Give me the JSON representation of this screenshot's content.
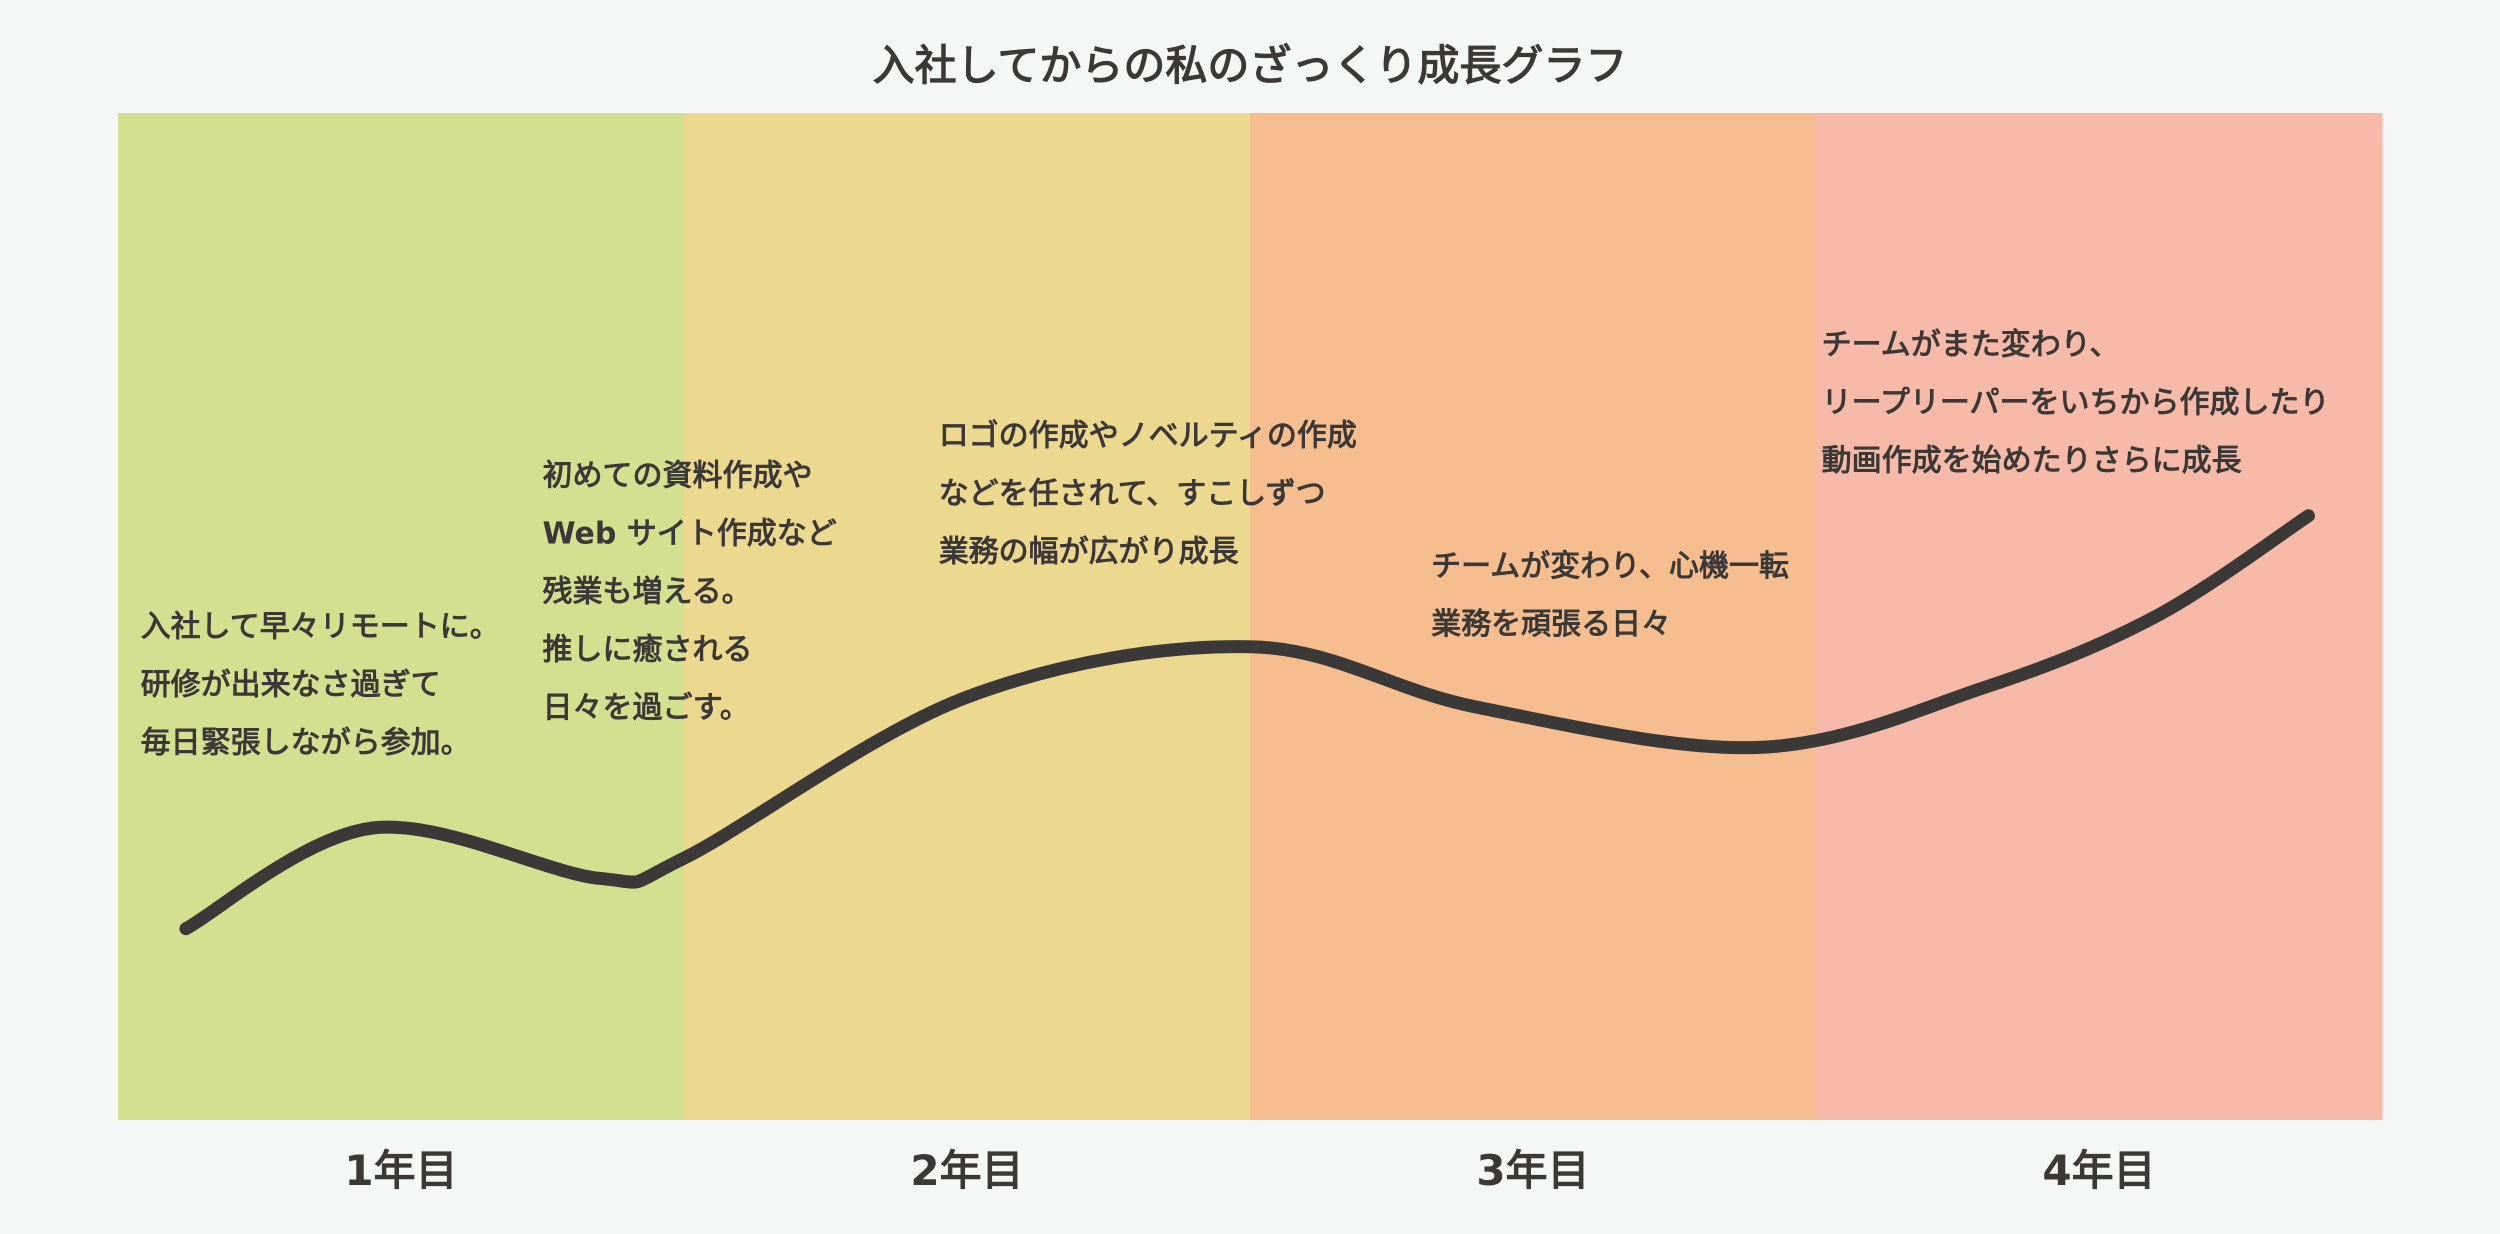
{
  "chart_data": {
    "type": "line",
    "title": "入社してからの私のざっくり成長グラフ",
    "xlabel": "",
    "ylabel": "",
    "categories": [
      "1年目",
      "2年目",
      "3年目",
      "4年目"
    ],
    "xlim": [
      0,
      4
    ],
    "ylim": [
      0,
      100
    ],
    "grid": false,
    "legend": "none",
    "band_colors": [
      "#d3e08f",
      "#ecd98f",
      "#f6be8f",
      "#f7b9a8"
    ],
    "line_color": "#3b3838",
    "series": [
      {
        "points": [
          {
            "x": 0.12,
            "y": 19
          },
          {
            "x": 0.45,
            "y": 29
          },
          {
            "x": 0.85,
            "y": 24
          },
          {
            "x": 1.0,
            "y": 26
          },
          {
            "x": 1.5,
            "y": 42
          },
          {
            "x": 2.0,
            "y": 47
          },
          {
            "x": 2.4,
            "y": 41
          },
          {
            "x": 2.9,
            "y": 37
          },
          {
            "x": 3.3,
            "y": 43
          },
          {
            "x": 3.6,
            "y": 50
          },
          {
            "x": 3.87,
            "y": 60
          }
        ]
      }
    ],
    "annotations": [
      {
        "x": 0.04,
        "y": 48,
        "lines": [
          "入社して早々リモートに。",
          "研修が出来なさ過ぎて",
          "毎日緊張しながら参加。"
        ]
      },
      {
        "x": 0.75,
        "y": 63,
        "lines": [
          "初めての資料作成や",
          "Web サイト作成など",
          "残業も増える。",
          "推しに癒される",
          "日々を過ごす。"
        ]
      },
      {
        "x": 1.45,
        "y": 67,
        "lines": [
          "ロゴの作成やノベルティの作成",
          "などを任されて、すこしずつ",
          "業務の幅が広がり成長"
        ]
      },
      {
        "x": 2.32,
        "y": 54,
        "lines": [
          "チームが変わり、心機一転",
          "業務を頑張る日々"
        ]
      },
      {
        "x": 3.01,
        "y": 76,
        "lines": [
          "チームがまた変わり、",
          "リープリーパーをいちから作成したり",
          "動画作成を始めたりさらに成長"
        ]
      }
    ]
  }
}
